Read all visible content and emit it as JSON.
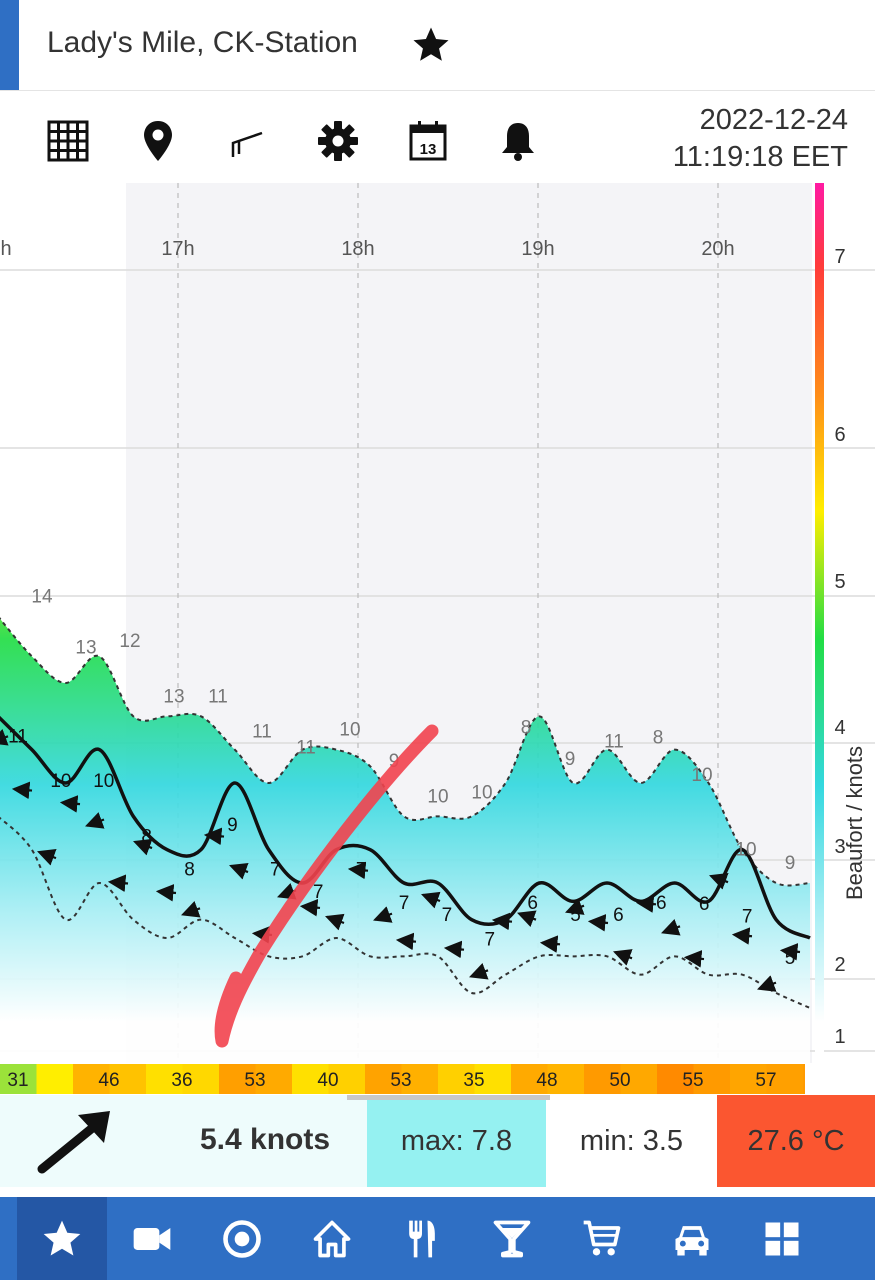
{
  "header": {
    "station_title": "Lady's Mile, CK-Station",
    "date": "2022-12-24",
    "time": "11:19:18 EET"
  },
  "toolbar": {
    "icons": [
      "grid-icon",
      "location-pin-icon",
      "wind-flag-icon",
      "gear-icon",
      "calendar-icon",
      "bell-icon"
    ],
    "calendar_day": "13"
  },
  "colors": {
    "accent": "#2f6fc4",
    "nav_active": "#2457a5",
    "max_bg": "#95f1f1",
    "temp_bg": "#fb5630",
    "scale_gradient": [
      "#ffffff",
      "#a8eef4",
      "#33d8df",
      "#22dd44",
      "#ffee00",
      "#ff8c1a",
      "#ff3b3b",
      "#ff1aa3"
    ]
  },
  "chart_data": {
    "type": "area",
    "x": [
      "16:30",
      "16:40",
      "16:50",
      "17:00",
      "17:10",
      "17:20",
      "17:30",
      "17:40",
      "17:50",
      "18:00",
      "18:10",
      "18:20",
      "18:30",
      "18:40",
      "18:50",
      "19:00",
      "19:10",
      "19:20",
      "19:30",
      "19:40",
      "19:50",
      "20:00",
      "20:10",
      "20:20",
      "20:30"
    ],
    "x_tick_labels": [
      "h",
      "17h",
      "18h",
      "19h",
      "20h"
    ],
    "yaxis_label": "Beaufort / knots",
    "y_tick_labels": [
      "1",
      "2",
      "3",
      "4",
      "5",
      "6",
      "7"
    ],
    "ylim_knots": [
      0,
      30
    ],
    "series": [
      {
        "role": "gust_max",
        "values": [
          14.5,
          13,
          12,
          13,
          11,
          11,
          11,
          10,
          9,
          10,
          10,
          9.5,
          8,
          8,
          8,
          9,
          11,
          9,
          10,
          9,
          10,
          9,
          7,
          6,
          6
        ]
      },
      {
        "role": "average",
        "values": [
          11,
          10,
          9,
          10,
          8,
          7,
          7,
          9,
          7,
          6,
          7,
          7,
          6,
          6,
          5,
          5,
          6,
          5.5,
          6,
          5.5,
          6,
          5.5,
          7,
          5,
          4.5
        ]
      },
      {
        "role": "minimum",
        "values": [
          8,
          7,
          5,
          6,
          5,
          4.5,
          5,
          4.5,
          4,
          4,
          4.5,
          4,
          4,
          4,
          3,
          3.5,
          4,
          4,
          4,
          3.5,
          4,
          3.5,
          3.5,
          3,
          2.5
        ]
      }
    ],
    "value_labels": [
      {
        "text": "14",
        "series": "gust_max"
      },
      {
        "text": "13",
        "series": "gust_max"
      },
      {
        "text": "12",
        "series": "gust_max"
      },
      {
        "text": "13",
        "series": "gust_max"
      },
      {
        "text": "11",
        "series": "gust_max"
      },
      {
        "text": "11",
        "series": "gust_max"
      },
      {
        "text": "11",
        "series": "gust_max"
      },
      {
        "text": "10",
        "series": "gust_max"
      },
      {
        "text": "9",
        "series": "gust_max"
      },
      {
        "text": "10",
        "series": "gust_max"
      },
      {
        "text": "10",
        "series": "gust_max"
      },
      {
        "text": "8",
        "series": "gust_max"
      },
      {
        "text": "9",
        "series": "gust_max"
      },
      {
        "text": "11",
        "series": "gust_max"
      },
      {
        "text": "8",
        "series": "gust_max"
      },
      {
        "text": "10",
        "series": "gust_max"
      },
      {
        "text": "10",
        "series": "gust_max"
      },
      {
        "text": "9",
        "series": "gust_max"
      },
      {
        "text": "11",
        "series": "average"
      },
      {
        "text": "10",
        "series": "average"
      },
      {
        "text": "10",
        "series": "average"
      },
      {
        "text": "8",
        "series": "average"
      },
      {
        "text": "8",
        "series": "average"
      },
      {
        "text": "9",
        "series": "average"
      },
      {
        "text": "7",
        "series": "average"
      },
      {
        "text": "7",
        "series": "average"
      },
      {
        "text": "7",
        "series": "average"
      },
      {
        "text": "7",
        "series": "average"
      },
      {
        "text": "7",
        "series": "average"
      },
      {
        "text": "7",
        "series": "average"
      },
      {
        "text": "6",
        "series": "average"
      },
      {
        "text": "5",
        "series": "average"
      },
      {
        "text": "6",
        "series": "average"
      },
      {
        "text": "6",
        "series": "average"
      },
      {
        "text": "6",
        "series": "average"
      },
      {
        "text": "7",
        "series": "average"
      },
      {
        "text": "5",
        "series": "average"
      }
    ],
    "direction_strip": [
      "31",
      "46",
      "36",
      "53",
      "40",
      "53",
      "35",
      "48",
      "50",
      "55",
      "57"
    ]
  },
  "summary": {
    "current_speed": "5.4 knots",
    "max_text": "max: 7.8",
    "min_text": "min: 3.5",
    "temperature": "27.6 °C",
    "direction_icon": "arrow-northeast-icon"
  },
  "bottom_nav": {
    "items": [
      "star-icon",
      "video-camera-icon",
      "target-icon",
      "home-icon",
      "restaurant-icon",
      "cocktail-icon",
      "shopping-cart-icon",
      "car-icon",
      "apps-grid-icon"
    ],
    "active_index": 0
  }
}
